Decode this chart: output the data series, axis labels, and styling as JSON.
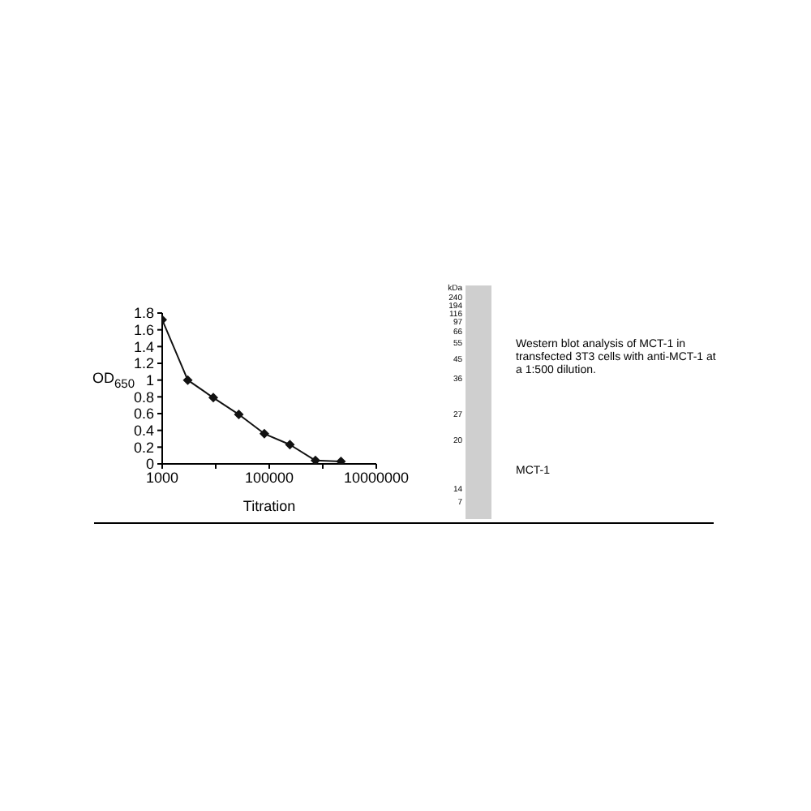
{
  "chart_data": [
    {
      "type": "line",
      "xlabel": "Titration",
      "ylabel": "OD$_{650}$",
      "x": [
        1000,
        3000,
        9000,
        27000,
        81000,
        243000,
        729000,
        2187000
      ],
      "values": [
        1.72,
        1.0,
        0.79,
        0.59,
        0.36,
        0.23,
        0.04,
        0.03
      ],
      "color": "#111111",
      "xlim": [
        1000,
        10000000
      ],
      "xticks": [
        1000,
        {
          "value": 10000,
          "label": null
        },
        100000,
        {
          "value": 1000000,
          "label": null
        },
        10000000
      ],
      "ylim": [
        0,
        1.8
      ],
      "yticks": [
        0,
        0.2,
        0.4,
        0.6,
        0.8,
        1,
        1.2,
        1.4,
        1.6,
        1.8
      ],
      "log": "x",
      "marker": "diamond"
    },
    {
      "type": "other",
      "annotations": [
        "Western blot analysis of MCT-1 in transfected 3T3 cells with anti-MCT-1 at a 1:500 dilution.",
        "MCT-1",
        "kDa",
        "240",
        "194",
        "116",
        "97",
        "66",
        "55",
        "45",
        "36",
        "27",
        "20",
        "14",
        "7"
      ]
    }
  ]
}
